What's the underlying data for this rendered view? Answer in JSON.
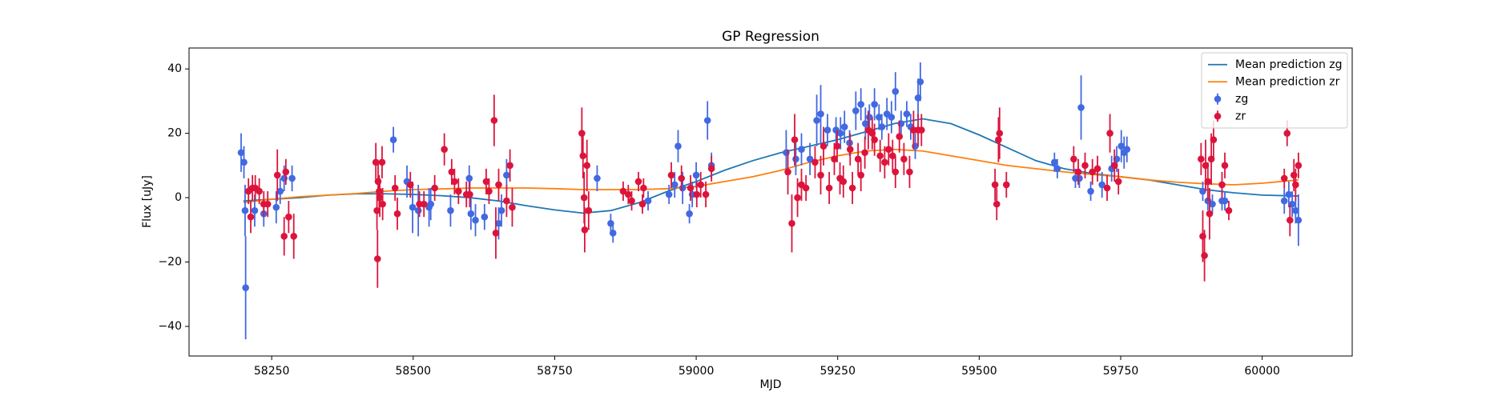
{
  "chart_data": {
    "type": "scatter",
    "title": "GP Regression",
    "xlabel": "MJD",
    "ylabel": "Flux [uJy]",
    "xlim": [
      58104,
      60159
    ],
    "ylim": [
      -49.2,
      46.5
    ],
    "xticks": [
      58250,
      58500,
      58750,
      59000,
      59250,
      59500,
      59750,
      60000
    ],
    "yticks": [
      {
        "value": -40,
        "label": "−40"
      },
      {
        "value": -20,
        "label": "−20"
      },
      0,
      20,
      40
    ],
    "legend": "upper right",
    "series": [
      {
        "name": "Mean prediction zg",
        "type": "line",
        "color": "#1f77b4",
        "x": [
          58200,
          58250,
          58300,
          58350,
          58400,
          58450,
          58500,
          58550,
          58600,
          58650,
          58700,
          58750,
          58800,
          58850,
          58900,
          58950,
          59000,
          59050,
          59100,
          59150,
          59200,
          59250,
          59300,
          59350,
          59400,
          59450,
          59500,
          59550,
          59600,
          59650,
          59700,
          59750,
          59800,
          59850,
          59900,
          59950,
          60000,
          60064
        ],
        "values": [
          -1,
          -0.5,
          0,
          0.8,
          1.2,
          1.2,
          1,
          0.6,
          0,
          -1,
          -2.5,
          -3.8,
          -4.8,
          -4,
          -1.5,
          2,
          5,
          8.5,
          11.5,
          14,
          16,
          18,
          20.5,
          23,
          24.5,
          23,
          19.5,
          15.5,
          11.5,
          9,
          7.5,
          6.5,
          5.5,
          4,
          2.5,
          1.5,
          0.8,
          0.5
        ]
      },
      {
        "name": "Mean prediction zr",
        "type": "line",
        "color": "#ff7f0e",
        "x": [
          58200,
          58250,
          58300,
          58350,
          58400,
          58450,
          58500,
          58550,
          58600,
          58650,
          58700,
          58750,
          58800,
          58850,
          58900,
          58950,
          59000,
          59050,
          59100,
          59150,
          59200,
          59250,
          59300,
          59350,
          59400,
          59450,
          59500,
          59550,
          59600,
          59650,
          59700,
          59750,
          59800,
          59850,
          59900,
          59950,
          60000,
          60064
        ],
        "values": [
          -1.5,
          -0.5,
          0.3,
          0.8,
          1.3,
          2,
          2.5,
          2.7,
          3,
          3,
          3,
          2.8,
          2.5,
          2.5,
          2.5,
          2.8,
          3.5,
          5,
          6.5,
          8.5,
          11,
          13,
          14.5,
          15,
          14.5,
          13,
          11.5,
          10,
          9,
          8,
          7.2,
          6.5,
          5.5,
          4.8,
          4.3,
          4,
          4.5,
          5.5
        ]
      },
      {
        "name": "zg",
        "type": "errorbar",
        "color": "#4169e1",
        "x": [
          58196,
          58201,
          58203,
          58204,
          58220,
          58236,
          58258,
          58265,
          58272,
          58286,
          58465,
          58489,
          58499,
          58509,
          58528,
          58531,
          58566,
          58599,
          58602,
          58610,
          58626,
          58651,
          58656,
          58665,
          58825,
          58849,
          58853,
          58915,
          58952,
          58962,
          58968,
          58976,
          58988,
          58993,
          59000,
          59020,
          59027,
          59159,
          59176,
          59186,
          59201,
          59213,
          59220,
          59232,
          59247,
          59255,
          59262,
          59271,
          59282,
          59291,
          59299,
          59306,
          59315,
          59323,
          59328,
          59337,
          59345,
          59352,
          59362,
          59372,
          59379,
          59387,
          59392,
          59396,
          59633,
          59638,
          59670,
          59677,
          59680,
          59697,
          59717,
          59734,
          59743,
          59751,
          59756,
          59761,
          59895,
          59904,
          59912,
          59929,
          59934,
          60039,
          60047,
          60053,
          60059,
          60064
        ],
        "values": [
          14,
          11,
          -4,
          -28,
          -4,
          -5,
          -3,
          2,
          6,
          6,
          18,
          5,
          -3,
          -4,
          -3,
          -2,
          -4,
          6,
          -5,
          -7,
          -6,
          -8,
          -4,
          7,
          6,
          -8,
          -11,
          -1,
          1,
          4,
          16,
          3,
          -5,
          1,
          7,
          24,
          10,
          14,
          12,
          15,
          12,
          24,
          26,
          21,
          21,
          20,
          22,
          17,
          27,
          29,
          23,
          25,
          29,
          25,
          22,
          26,
          25,
          33,
          23,
          26,
          22,
          16,
          31,
          36,
          11,
          9,
          6,
          6,
          28,
          2,
          4,
          9,
          12,
          16,
          14,
          15,
          2,
          -1,
          -2,
          -1,
          -1,
          -1,
          1,
          -2,
          -4,
          -7
        ],
        "errors": [
          6,
          5,
          8,
          16,
          5,
          4,
          5,
          4,
          4,
          4,
          4,
          5,
          8,
          8,
          6,
          5,
          5,
          4,
          5,
          5,
          4,
          5,
          5,
          5,
          4,
          3,
          3,
          3,
          3,
          4,
          5,
          5,
          3,
          4,
          4,
          6,
          4,
          7,
          5,
          5,
          5,
          8,
          9,
          5,
          4,
          5,
          5,
          4,
          6,
          5,
          5,
          4,
          5,
          4,
          4,
          5,
          5,
          6,
          4,
          4,
          4,
          4,
          6,
          6,
          3,
          3,
          3,
          3,
          10,
          3,
          4,
          4,
          4,
          5,
          5,
          4,
          3,
          3,
          3,
          3,
          3,
          4,
          4,
          4,
          4,
          8
        ]
      },
      {
        "name": "zr",
        "type": "errorbar",
        "color": "#dc143c",
        "x": [
          58209,
          58213,
          58216,
          58221,
          58228,
          58236,
          58243,
          58260,
          58272,
          58275,
          58280,
          58289,
          58434,
          58436,
          58437,
          58438,
          58440,
          58441,
          58445,
          58446,
          58468,
          58472,
          58495,
          58511,
          58519,
          58538,
          58555,
          58568,
          58573,
          58580,
          58594,
          58600,
          58629,
          58634,
          58643,
          58646,
          58651,
          58665,
          58671,
          58675,
          58798,
          58800,
          58802,
          58803,
          58807,
          58810,
          58871,
          58880,
          58886,
          58898,
          58905,
          58907,
          58956,
          58974,
          58990,
          59001,
          59008,
          59017,
          59027,
          59162,
          59169,
          59174,
          59179,
          59186,
          59194,
          59210,
          59220,
          59225,
          59235,
          59244,
          59249,
          59254,
          59260,
          59272,
          59276,
          59286,
          59291,
          59298,
          59304,
          59311,
          59315,
          59325,
          59333,
          59340,
          59347,
          59352,
          59359,
          59367,
          59377,
          59384,
          59392,
          59398,
          59528,
          59531,
          59534,
          59536,
          59548,
          59667,
          59675,
          59687,
          59700,
          59709,
          59726,
          59731,
          59739,
          59746,
          59892,
          59895,
          59898,
          59900,
          59904,
          59907,
          59910,
          59914,
          59929,
          59934,
          59941,
          60039,
          60044,
          60049,
          60056,
          60059,
          60064
        ],
        "values": [
          2,
          -6,
          3,
          3,
          2,
          -2,
          -2,
          7,
          -12,
          8,
          -6,
          -12,
          11,
          -4,
          -19,
          5,
          2,
          0,
          11,
          -2,
          3,
          -5,
          4,
          -2,
          -2,
          3,
          15,
          8,
          5,
          2,
          1,
          1,
          5,
          2,
          24,
          -11,
          4,
          -1,
          10,
          -3,
          20,
          13,
          0,
          -10,
          10,
          -4,
          2,
          1,
          -1,
          5,
          -2,
          3,
          7,
          6,
          3,
          1,
          4,
          1,
          9,
          8,
          -8,
          18,
          0,
          4,
          3,
          11,
          7,
          16,
          3,
          12,
          16,
          6,
          5,
          15,
          3,
          12,
          7,
          14,
          21,
          20,
          18,
          13,
          11,
          15,
          13,
          8,
          19,
          12,
          8,
          21,
          21,
          21,
          4,
          -2,
          18,
          20,
          4,
          12,
          8,
          10,
          8,
          9,
          3,
          20,
          10,
          5,
          12,
          -12,
          -18,
          10,
          5,
          -5,
          12,
          18,
          4,
          10,
          -4,
          6,
          20,
          -7,
          7,
          4,
          10
        ],
        "errors": [
          4,
          5,
          4,
          4,
          4,
          4,
          4,
          8,
          6,
          4,
          5,
          7,
          6,
          6,
          9,
          6,
          5,
          6,
          5,
          5,
          4,
          5,
          4,
          4,
          4,
          4,
          5,
          4,
          4,
          4,
          4,
          4,
          4,
          4,
          8,
          8,
          5,
          5,
          5,
          6,
          8,
          7,
          8,
          7,
          8,
          6,
          3,
          3,
          3,
          3,
          3,
          3,
          4,
          4,
          4,
          4,
          4,
          4,
          4,
          7,
          9,
          8,
          6,
          5,
          4,
          5,
          6,
          6,
          5,
          5,
          5,
          5,
          5,
          5,
          5,
          5,
          5,
          5,
          6,
          5,
          5,
          5,
          5,
          5,
          5,
          5,
          5,
          5,
          5,
          6,
          5,
          5,
          5,
          5,
          7,
          8,
          4,
          4,
          4,
          4,
          4,
          4,
          4,
          6,
          5,
          4,
          5,
          8,
          8,
          8,
          6,
          8,
          8,
          6,
          4,
          4,
          3,
          3,
          4,
          5,
          5,
          5,
          4
        ]
      }
    ]
  }
}
